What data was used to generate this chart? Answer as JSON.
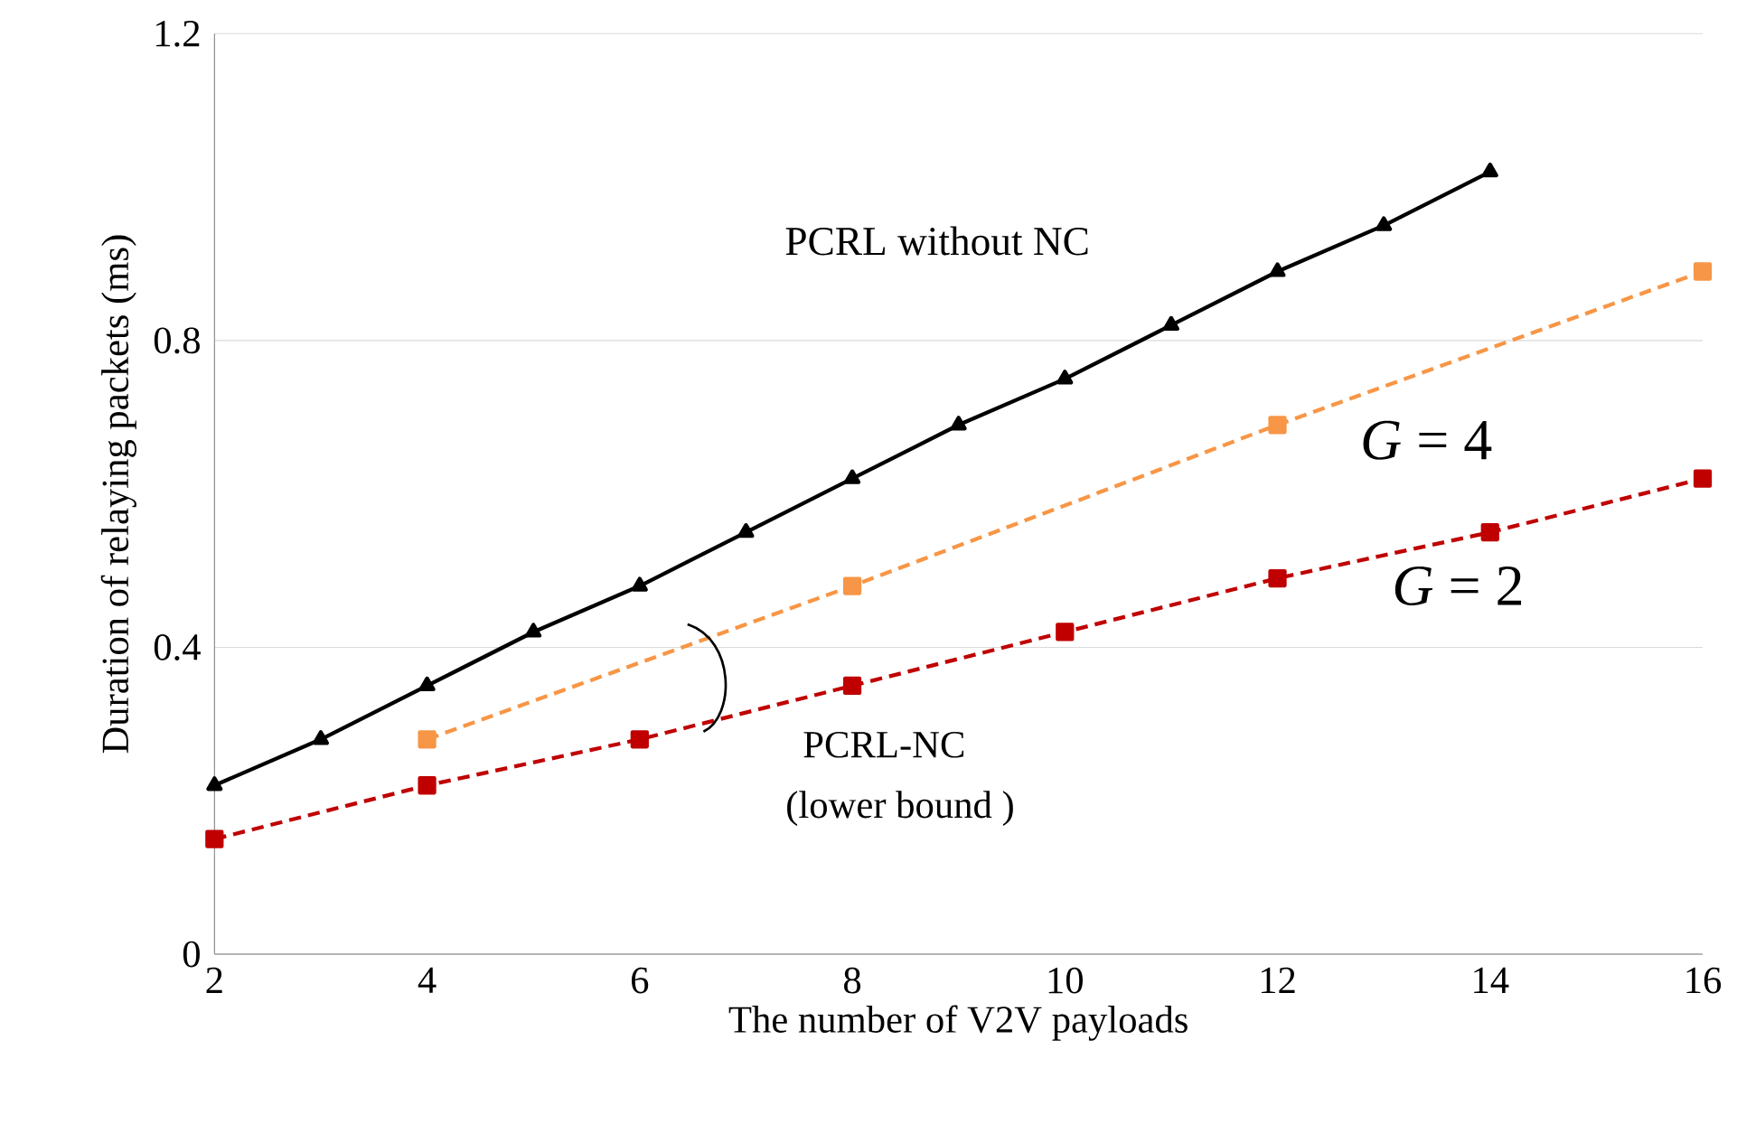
{
  "chart_data": {
    "type": "line",
    "xlabel": "The number of V2V payloads",
    "ylabel": "Duration of relaying packets (ms)",
    "xlim": [
      2,
      16
    ],
    "xticks": [
      2,
      4,
      6,
      8,
      10,
      12,
      14,
      16
    ],
    "ylim": [
      0,
      1.2
    ],
    "yticks": [
      0,
      0.4,
      0.8,
      1.2
    ],
    "grid": "y",
    "series": [
      {
        "name": "PCRL without NC",
        "color": "#000000",
        "marker": "triangle",
        "line_style": "solid",
        "x": [
          2,
          3,
          4,
          5,
          6,
          7,
          8,
          9,
          10,
          11,
          12,
          13,
          14
        ],
        "values": [
          0.22,
          0.28,
          0.35,
          0.42,
          0.48,
          0.55,
          0.62,
          0.69,
          0.75,
          0.82,
          0.89,
          0.95,
          1.02
        ]
      },
      {
        "name": "*G* = 4",
        "color": "#f79646",
        "marker": "square",
        "line_style": "dashed",
        "x": [
          4,
          8,
          12,
          16
        ],
        "values": [
          0.28,
          0.48,
          0.69,
          0.89
        ]
      },
      {
        "name": "*G* = 2",
        "color": "#c00000",
        "marker": "square",
        "line_style": "dashed",
        "x": [
          2,
          4,
          6,
          8,
          10,
          12,
          14,
          16
        ],
        "values": [
          0.15,
          0.22,
          0.28,
          0.35,
          0.42,
          0.49,
          0.55,
          0.62
        ]
      }
    ],
    "annotations": [
      "PCRL-NC",
      "(lower bound )"
    ]
  }
}
